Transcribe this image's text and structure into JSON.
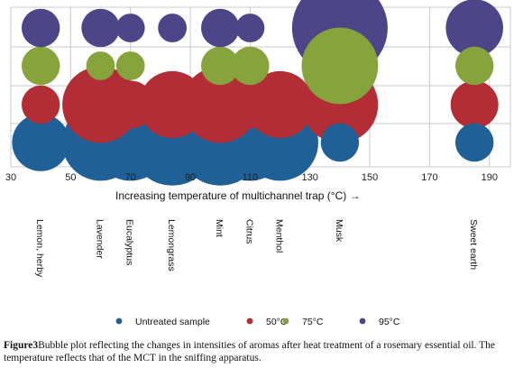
{
  "chart_data": {
    "type": "scatter",
    "xlabel": "Increasing temperature of multichannel trap (°C) →",
    "xlim": [
      30,
      197
    ],
    "x_ticks": [
      "30",
      "50",
      "70",
      "90",
      "110",
      "130",
      "150",
      "170",
      "190"
    ],
    "x_tick_values": [
      30,
      50,
      70,
      90,
      110,
      130,
      150,
      170,
      190
    ],
    "categories": [
      "Lemon, herby",
      "Lavender",
      "Eucalyptus",
      "Lemongrass",
      "Mint",
      "Citrus",
      "Menthol",
      "Musk",
      "Sweet earth"
    ],
    "category_x": [
      40,
      60,
      70,
      84,
      100,
      110,
      120,
      140,
      185
    ],
    "series": [
      {
        "name": "Untreated sample",
        "color": "#1f6096",
        "values": [
          3,
          4,
          4,
          4.5,
          4.5,
          4,
          4,
          2,
          2
        ]
      },
      {
        "name": "50°C",
        "color": "#b22d35",
        "values": [
          2,
          4,
          2.5,
          3.5,
          4,
          2.5,
          3.5,
          4,
          2.5
        ]
      },
      {
        "name": "75°C",
        "color": "#86a33c",
        "values": [
          2,
          1.5,
          1.5,
          0,
          2,
          2,
          0,
          4,
          2
        ]
      },
      {
        "name": "95°C",
        "color": "#4c4689",
        "values": [
          2,
          2,
          1.5,
          1.5,
          2,
          1.5,
          0,
          5,
          3
        ]
      }
    ],
    "grid": true,
    "legend": "bottom"
  },
  "caption": {
    "label": "Figure3",
    "text": "Bubble plot reflecting the changes in intensities of aromas after heat treatment of a rosemary essential oil. The temperature reflects that of the MCT in the sniffing apparatus."
  }
}
